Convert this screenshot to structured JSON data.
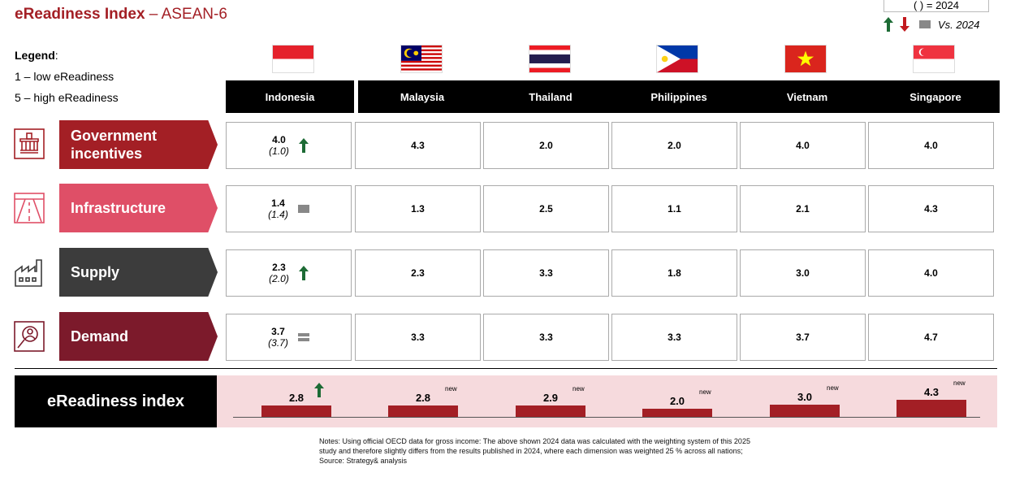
{
  "title": {
    "main": "eReadiness Index",
    "sep": " – ",
    "region": "ASEAN-6"
  },
  "key": {
    "paren_label": "( ) = 2024",
    "vs_label": "Vs. 2024"
  },
  "legend": {
    "title": "Legend",
    "colon": ":",
    "low": "1 – low eReadiness",
    "high": "5 – high eReadiness"
  },
  "countries": [
    "Indonesia",
    "Malaysia",
    "Thailand",
    "Philippines",
    "Vietnam",
    "Singapore"
  ],
  "dimensions": [
    {
      "label": "Government incentives",
      "color": "#a31f25",
      "icon": "building-icon",
      "values": [
        "4.0",
        "4.3",
        "2.0",
        "2.0",
        "4.0",
        "4.0"
      ],
      "indonesia_2024": "(1.0)",
      "indonesia_trend": "up"
    },
    {
      "label": "Infrastructure",
      "color": "#df4f67",
      "icon": "road-icon",
      "values": [
        "1.4",
        "1.3",
        "2.5",
        "1.1",
        "2.1",
        "4.3"
      ],
      "indonesia_2024": "(1.4)",
      "indonesia_trend": "same"
    },
    {
      "label": "Supply",
      "color": "#3c3c3c",
      "icon": "factory-icon",
      "values": [
        "2.3",
        "2.3",
        "3.3",
        "1.8",
        "3.0",
        "4.0"
      ],
      "indonesia_2024": "(2.0)",
      "indonesia_trend": "up"
    },
    {
      "label": "Demand",
      "color": "#7c1a2b",
      "icon": "person-search-icon",
      "values": [
        "3.7",
        "3.3",
        "3.3",
        "3.3",
        "3.7",
        "4.7"
      ],
      "indonesia_2024": "(3.7)",
      "indonesia_trend": "same"
    }
  ],
  "index": {
    "label": "eReadiness index",
    "values": [
      2.8,
      2.8,
      2.9,
      2.0,
      3.0,
      4.3
    ],
    "display": [
      "2.8",
      "2.8",
      "2.9",
      "2.0",
      "3.0",
      "4.3"
    ],
    "tags": [
      "",
      "new",
      "new",
      "new",
      "new",
      "new"
    ],
    "indonesia_trend": "up"
  },
  "colors": {
    "accent": "#a31f25",
    "arrow_up": "#1d6b35",
    "arrow_down": "#c21a1f",
    "same": "#888888",
    "panel": "#f6dadd"
  },
  "notes": [
    "Notes: Using official OECD data for gross income: The above shown 2024 data was calculated with the weighting system of this 2025",
    "study and therefore slightly differs from the results published in 2024, where each dimension was weighted 25 % across all nations;",
    "Source: Strategy& analysis"
  ]
}
